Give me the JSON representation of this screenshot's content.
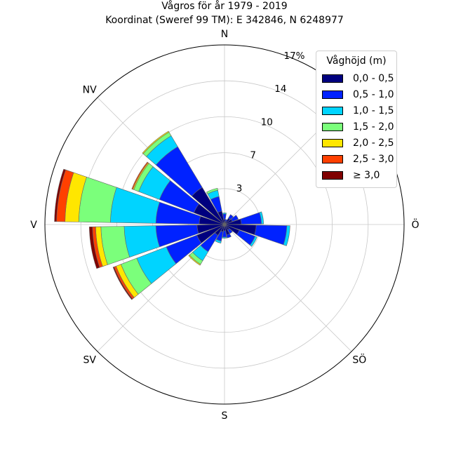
{
  "chart_data": {
    "type": "polar-stacked-bar",
    "title": "Vågros för år 1979 - 2019",
    "subtitle": "Koordinat (Sweref 99 TM): E 342846, N 6248977",
    "directions": [
      "N",
      "NV",
      "V",
      "SV",
      "S",
      "SÖ",
      "Ö",
      "NÖ"
    ],
    "radial_ticks": [
      "3",
      "7",
      "10",
      "14",
      "17%"
    ],
    "radial_tick_values": [
      3.4,
      6.8,
      10.2,
      13.6,
      17
    ],
    "rmax": 17,
    "legend": {
      "title": "Våghöjd (m)",
      "placement": "upper-right",
      "entries": [
        "0,0 - 0,5",
        "0,5 - 1,0",
        "1,0 - 1,5",
        "1,5 - 2,0",
        "2,0 - 2,5",
        "2,5 - 3,0",
        "≥ 3,0"
      ]
    },
    "colors": [
      "#00007f",
      "#0022ff",
      "#00d4ff",
      "#7bff7b",
      "#ffe600",
      "#ff4000",
      "#800000"
    ],
    "sector_width_deg": 18,
    "sectors": [
      {
        "angle": 0,
        "values": [
          0.5,
          0.5,
          0.1,
          0,
          0,
          0,
          0
        ]
      },
      {
        "angle": 20,
        "values": [
          0.3,
          0.2,
          0,
          0,
          0,
          0,
          0
        ]
      },
      {
        "angle": 40,
        "values": [
          0.7,
          0.4,
          0,
          0,
          0,
          0,
          0
        ]
      },
      {
        "angle": 60,
        "values": [
          0.8,
          0.6,
          0,
          0,
          0,
          0,
          0
        ]
      },
      {
        "angle": 80,
        "values": [
          1.6,
          1.9,
          0.2,
          0,
          0,
          0,
          0
        ]
      },
      {
        "angle": 100,
        "values": [
          3.0,
          2.9,
          0.3,
          0,
          0,
          0,
          0
        ]
      },
      {
        "angle": 120,
        "values": [
          1.5,
          1.6,
          0.2,
          0,
          0,
          0,
          0
        ]
      },
      {
        "angle": 140,
        "values": [
          0.6,
          0.4,
          0,
          0,
          0,
          0,
          0
        ]
      },
      {
        "angle": 160,
        "values": [
          1.0,
          0.3,
          0,
          0,
          0,
          0,
          0
        ]
      },
      {
        "angle": 180,
        "values": [
          0.6,
          0.6,
          0.1,
          0,
          0,
          0,
          0
        ]
      },
      {
        "angle": 200,
        "values": [
          0.7,
          0.9,
          0.2,
          0,
          0,
          0,
          0
        ]
      },
      {
        "angle": 220,
        "values": [
          1.2,
          1.8,
          1.0,
          0.4,
          0.1,
          0,
          0
        ]
      },
      {
        "angle": 240,
        "values": [
          2.8,
          3.1,
          3.0,
          1.6,
          0.5,
          0.2,
          0.1
        ]
      },
      {
        "angle": 260,
        "values": [
          2.6,
          3.9,
          3.0,
          2.2,
          0.5,
          0.3,
          0.3
        ]
      },
      {
        "angle": 280,
        "values": [
          2.4,
          4.1,
          4.3,
          3.0,
          1.3,
          0.8,
          0.2
        ]
      },
      {
        "angle": 300,
        "values": [
          3.1,
          3.5,
          2.1,
          0.5,
          0.1,
          0.1,
          0
        ]
      },
      {
        "angle": 320,
        "values": [
          4.1,
          4.5,
          1.2,
          0.4,
          0.1,
          0,
          0
        ]
      },
      {
        "angle": 340,
        "values": [
          1.3,
          1.4,
          0.6,
          0.2,
          0,
          0,
          0
        ]
      }
    ]
  }
}
